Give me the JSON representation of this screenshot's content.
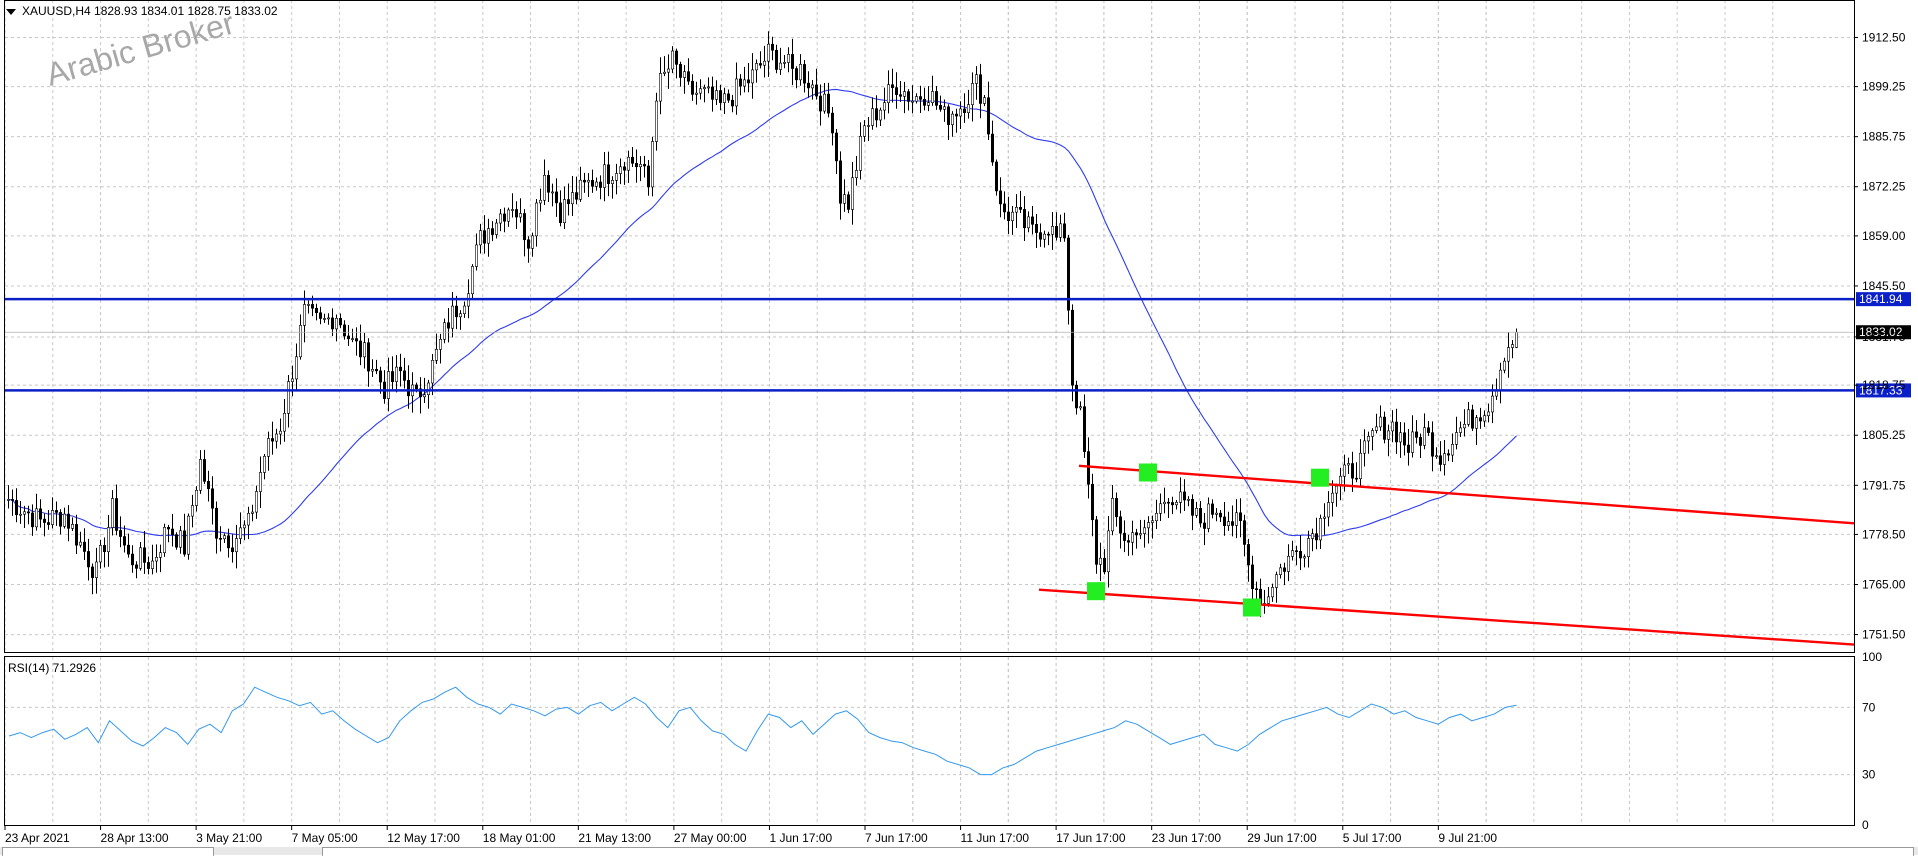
{
  "header": {
    "symbol": "XAUUSD,H4",
    "ohlc": "1828.93 1834.01 1828.75 1833.02",
    "watermark": "Arabic Broker"
  },
  "rsi_header": "RSI(14) 71.2926",
  "colors": {
    "candles": "#000000",
    "ma": "#2e3cf0",
    "hline": "#0b1fc8",
    "channel": "#ff0000",
    "rsi": "#3399ee",
    "marker": "#22ee22",
    "grid": "#c8c8c8"
  },
  "chart_data": [
    {
      "type": "candlestick",
      "title": "XAUUSD,H4",
      "y_ticks": [
        "1912.50",
        "1899.25",
        "1885.75",
        "1872.25",
        "1859.00",
        "1845.50",
        "1831.75",
        "1818.75",
        "1805.25",
        "1791.75",
        "1778.50",
        "1765.00",
        "1751.50"
      ],
      "ylim": [
        1746.8,
        1922.6
      ],
      "x_ticks": [
        "23 Apr 2021",
        "28 Apr 13:00",
        "3 May 21:00",
        "7 May 05:00",
        "12 May 17:00",
        "18 May 01:00",
        "21 May 13:00",
        "27 May 00:00",
        "1 Jun 17:00",
        "7 Jun 17:00",
        "11 Jun 17:00",
        "17 Jun 17:00",
        "23 Jun 17:00",
        "29 Jun 17:00",
        "5 Jul 17:00",
        "9 Jul 21:00"
      ],
      "horizontal_lines": [
        {
          "label": "1841.94",
          "value": 1841.94
        },
        {
          "label": "1817.33",
          "value": 1817.33
        }
      ],
      "current_price": {
        "label": "1833.02",
        "value": 1833.02
      },
      "grid": true,
      "price_path": [
        [
          0,
          1788
        ],
        [
          8,
          1782
        ],
        [
          14,
          1784
        ],
        [
          18,
          1776
        ],
        [
          22,
          1768
        ],
        [
          26,
          1785
        ],
        [
          30,
          1772
        ],
        [
          36,
          1771
        ],
        [
          40,
          1781
        ],
        [
          44,
          1775
        ],
        [
          48,
          1798
        ],
        [
          52,
          1780
        ],
        [
          56,
          1777
        ],
        [
          60,
          1781
        ],
        [
          64,
          1800
        ],
        [
          68,
          1808
        ],
        [
          70,
          1818
        ],
        [
          74,
          1838
        ],
        [
          78,
          1835
        ],
        [
          82,
          1838
        ],
        [
          86,
          1830
        ],
        [
          90,
          1826
        ],
        [
          94,
          1818
        ],
        [
          98,
          1822
        ],
        [
          102,
          1815
        ],
        [
          106,
          1824
        ],
        [
          110,
          1836
        ],
        [
          114,
          1843
        ],
        [
          118,
          1858
        ],
        [
          122,
          1864
        ],
        [
          126,
          1868
        ],
        [
          130,
          1858
        ],
        [
          134,
          1876
        ],
        [
          138,
          1866
        ],
        [
          142,
          1870
        ],
        [
          146,
          1874
        ],
        [
          150,
          1876
        ],
        [
          154,
          1880
        ],
        [
          158,
          1878
        ],
        [
          160,
          1872
        ],
        [
          162,
          1898
        ],
        [
          166,
          1906
        ],
        [
          170,
          1898
        ],
        [
          174,
          1897
        ],
        [
          178,
          1894
        ],
        [
          182,
          1898
        ],
        [
          186,
          1902
        ],
        [
          190,
          1908
        ],
        [
          194,
          1906
        ],
        [
          196,
          1903
        ],
        [
          198,
          1904
        ],
        [
          202,
          1898
        ],
        [
          206,
          1890
        ],
        [
          208,
          1870
        ],
        [
          210,
          1868
        ],
        [
          212,
          1878
        ],
        [
          214,
          1888
        ],
        [
          218,
          1894
        ],
        [
          222,
          1900
        ],
        [
          226,
          1896
        ],
        [
          230,
          1898
        ],
        [
          234,
          1891
        ],
        [
          238,
          1894
        ],
        [
          242,
          1900
        ],
        [
          244,
          1896
        ],
        [
          246,
          1880
        ],
        [
          248,
          1866
        ],
        [
          252,
          1864
        ],
        [
          256,
          1860
        ],
        [
          260,
          1862
        ],
        [
          262,
          1858
        ],
        [
          264,
          1860
        ],
        [
          266,
          1820
        ],
        [
          268,
          1810
        ],
        [
          270,
          1790
        ],
        [
          272,
          1772
        ],
        [
          274,
          1771
        ],
        [
          276,
          1785
        ],
        [
          278,
          1780
        ],
        [
          280,
          1776
        ],
        [
          282,
          1781
        ],
        [
          284,
          1778
        ],
        [
          286,
          1782
        ],
        [
          290,
          1790
        ],
        [
          294,
          1786
        ],
        [
          298,
          1782
        ],
        [
          302,
          1786
        ],
        [
          306,
          1782
        ],
        [
          308,
          1780
        ],
        [
          310,
          1770
        ],
        [
          312,
          1764
        ],
        [
          314,
          1760
        ],
        [
          316,
          1766
        ],
        [
          320,
          1772
        ],
        [
          324,
          1776
        ],
        [
          328,
          1782
        ],
        [
          330,
          1790
        ],
        [
          334,
          1794
        ],
        [
          338,
          1798
        ],
        [
          342,
          1807
        ],
        [
          346,
          1808
        ],
        [
          350,
          1802
        ],
        [
          354,
          1806
        ],
        [
          358,
          1800
        ],
        [
          362,
          1806
        ],
        [
          366,
          1810
        ],
        [
          370,
          1814
        ],
        [
          372,
          1820
        ],
        [
          374,
          1828
        ],
        [
          376,
          1831
        ],
        [
          377,
          1833.02
        ]
      ]
    },
    {
      "type": "line",
      "title": "RSI(14) 71.2926",
      "y_ticks": [
        "100",
        "70",
        "30",
        "0"
      ],
      "ylim": [
        0,
        100
      ],
      "values": [
        53,
        55,
        52,
        55,
        57,
        51,
        54,
        58,
        49,
        62,
        56,
        50,
        47,
        52,
        58,
        55,
        48,
        57,
        60,
        55,
        68,
        72,
        82,
        79,
        76,
        74,
        71,
        73,
        66,
        68,
        62,
        57,
        53,
        49,
        52,
        62,
        68,
        73,
        75,
        79,
        82,
        76,
        72,
        70,
        66,
        72,
        70,
        68,
        65,
        69,
        70,
        66,
        71,
        73,
        68,
        72,
        76,
        72,
        64,
        58,
        68,
        70,
        62,
        56,
        54,
        48,
        44,
        56,
        66,
        64,
        58,
        62,
        54,
        60,
        66,
        68,
        63,
        55,
        52,
        50,
        49,
        46,
        44,
        42,
        38,
        36,
        34,
        30,
        30,
        34,
        36,
        40,
        44,
        46,
        48,
        50,
        52,
        54,
        56,
        58,
        62,
        60,
        56,
        52,
        48,
        50,
        52,
        54,
        48,
        46,
        44,
        48,
        54,
        58,
        62,
        64,
        66,
        68,
        70,
        66,
        64,
        68,
        72,
        70,
        66,
        68,
        64,
        62,
        60,
        64,
        66,
        62,
        64,
        66,
        70,
        71.2926
      ]
    }
  ]
}
